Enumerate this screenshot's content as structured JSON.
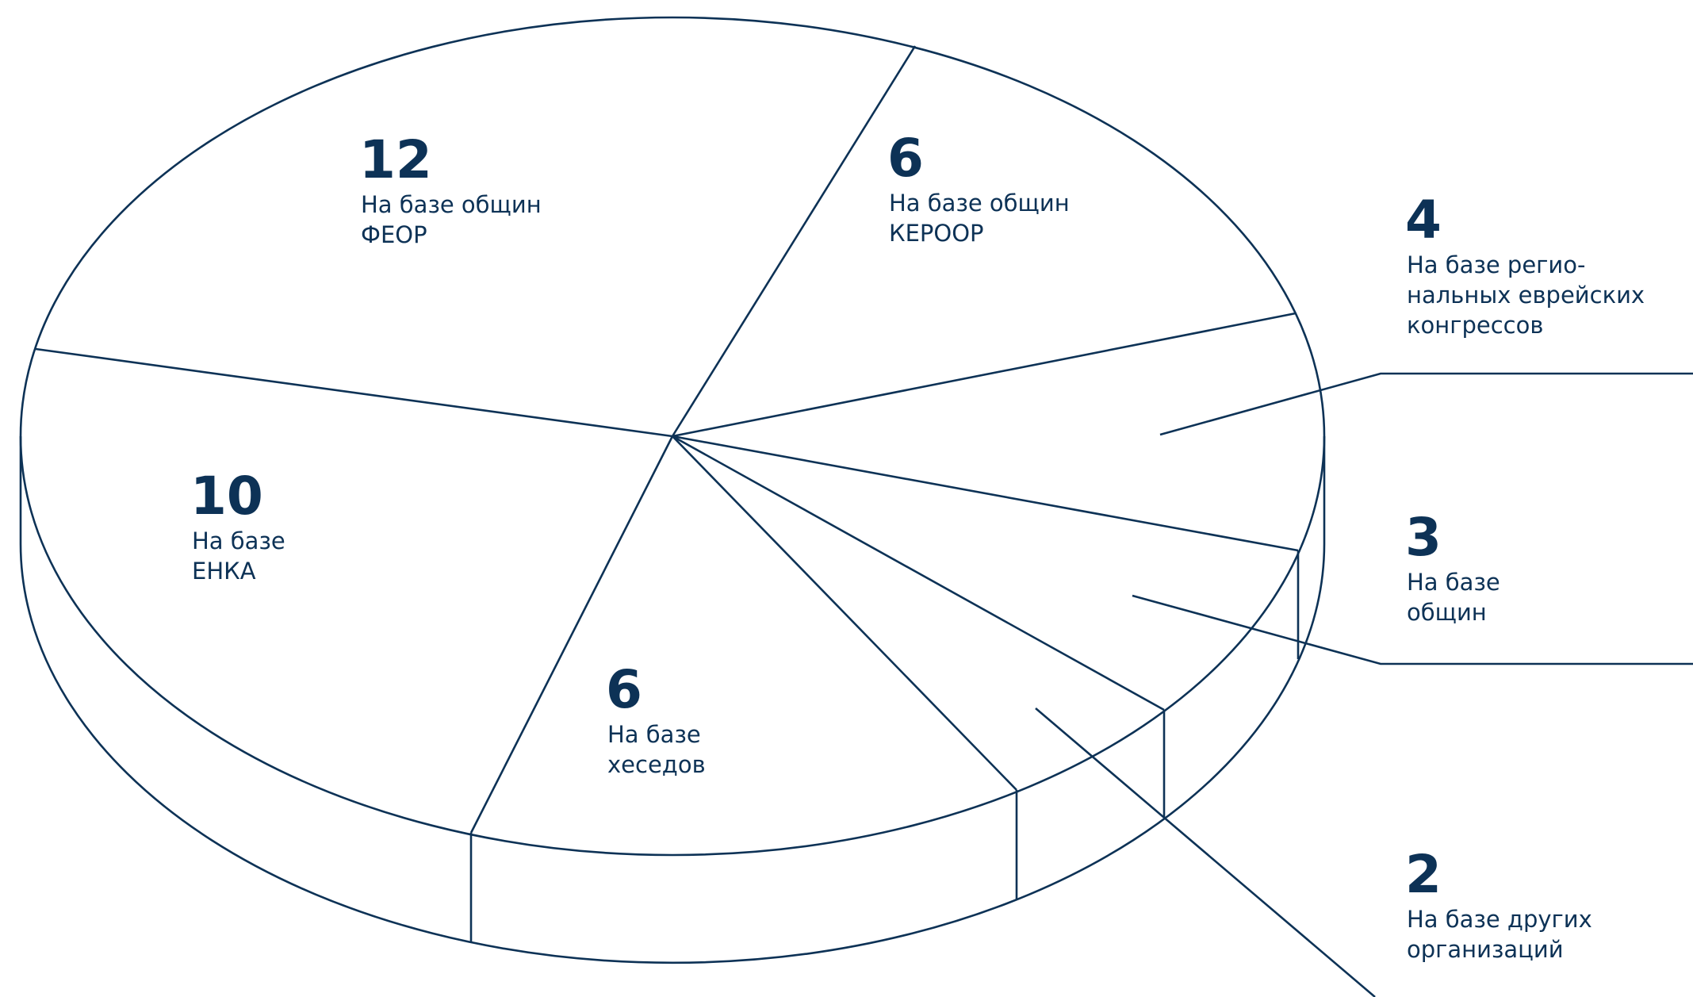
{
  "chart_data": {
    "type": "pie",
    "style": "3d-outline",
    "line_color": "#0d3256",
    "text_color": "#0d3256",
    "slices": [
      {
        "value": 12,
        "label_lines": [
          "На базе общин",
          "ФЕОР"
        ]
      },
      {
        "value": 6,
        "label_lines": [
          "На базе общин",
          "КЕРООР"
        ]
      },
      {
        "value": 4,
        "label_lines": [
          "На базе регио-",
          "нальных еврейских",
          "конгрессов"
        ]
      },
      {
        "value": 3,
        "label_lines": [
          "На базе",
          "общин"
        ]
      },
      {
        "value": 2,
        "label_lines": [
          "На базе других",
          "организаций"
        ]
      },
      {
        "value": 6,
        "label_lines": [
          "На базе",
          "хеседов"
        ]
      },
      {
        "value": 10,
        "label_lines": [
          "На базе",
          "ЕНКА"
        ]
      }
    ]
  }
}
